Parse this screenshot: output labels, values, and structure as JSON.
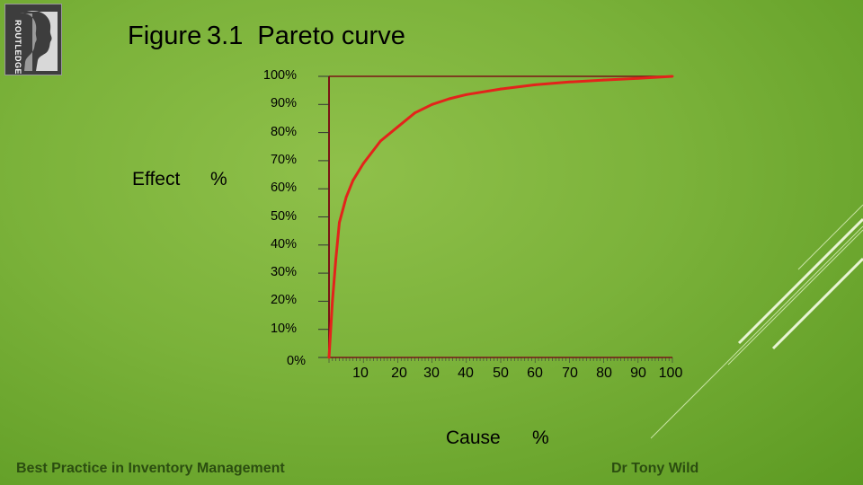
{
  "slide": {
    "title": "Figure 3.1  Pareto curve",
    "footer_left": "Best Practice in Inventory Management",
    "footer_right": "Dr Tony Wild",
    "logo_text": "ROUTLEDGE"
  },
  "chart_data": {
    "type": "line",
    "title": "Figure 3.1  Pareto curve",
    "xlabel": "Cause",
    "xlabel_unit": "%",
    "ylabel": "Effect",
    "ylabel_unit": "%",
    "x_tick_labels": [
      "10",
      "20",
      "30",
      "40",
      "50",
      "60",
      "70",
      "80",
      "90",
      "100"
    ],
    "x_ticks": [
      10,
      20,
      30,
      40,
      50,
      60,
      70,
      80,
      90,
      100
    ],
    "y_tick_labels": [
      "0%",
      "10%",
      "20%",
      "30%",
      "40%",
      "50%",
      "60%",
      "70%",
      "80%",
      "90%",
      "100%"
    ],
    "y_ticks": [
      0,
      10,
      20,
      30,
      40,
      50,
      60,
      70,
      80,
      90,
      100
    ],
    "xlim": [
      0,
      100
    ],
    "ylim": [
      0,
      100
    ],
    "grid": false,
    "series": [
      {
        "color": "#e3231b",
        "x": [
          0,
          1,
          2,
          3,
          5,
          7,
          10,
          15,
          20,
          25,
          30,
          35,
          40,
          50,
          60,
          70,
          80,
          90,
          100
        ],
        "y": [
          0,
          20,
          35,
          48,
          57,
          63,
          69,
          77,
          82,
          87,
          90,
          92,
          93.5,
          95.5,
          97,
          98,
          98.7,
          99.3,
          100
        ]
      }
    ],
    "colors": {
      "curve": "#e3231b",
      "axis": "#7a1414"
    }
  }
}
